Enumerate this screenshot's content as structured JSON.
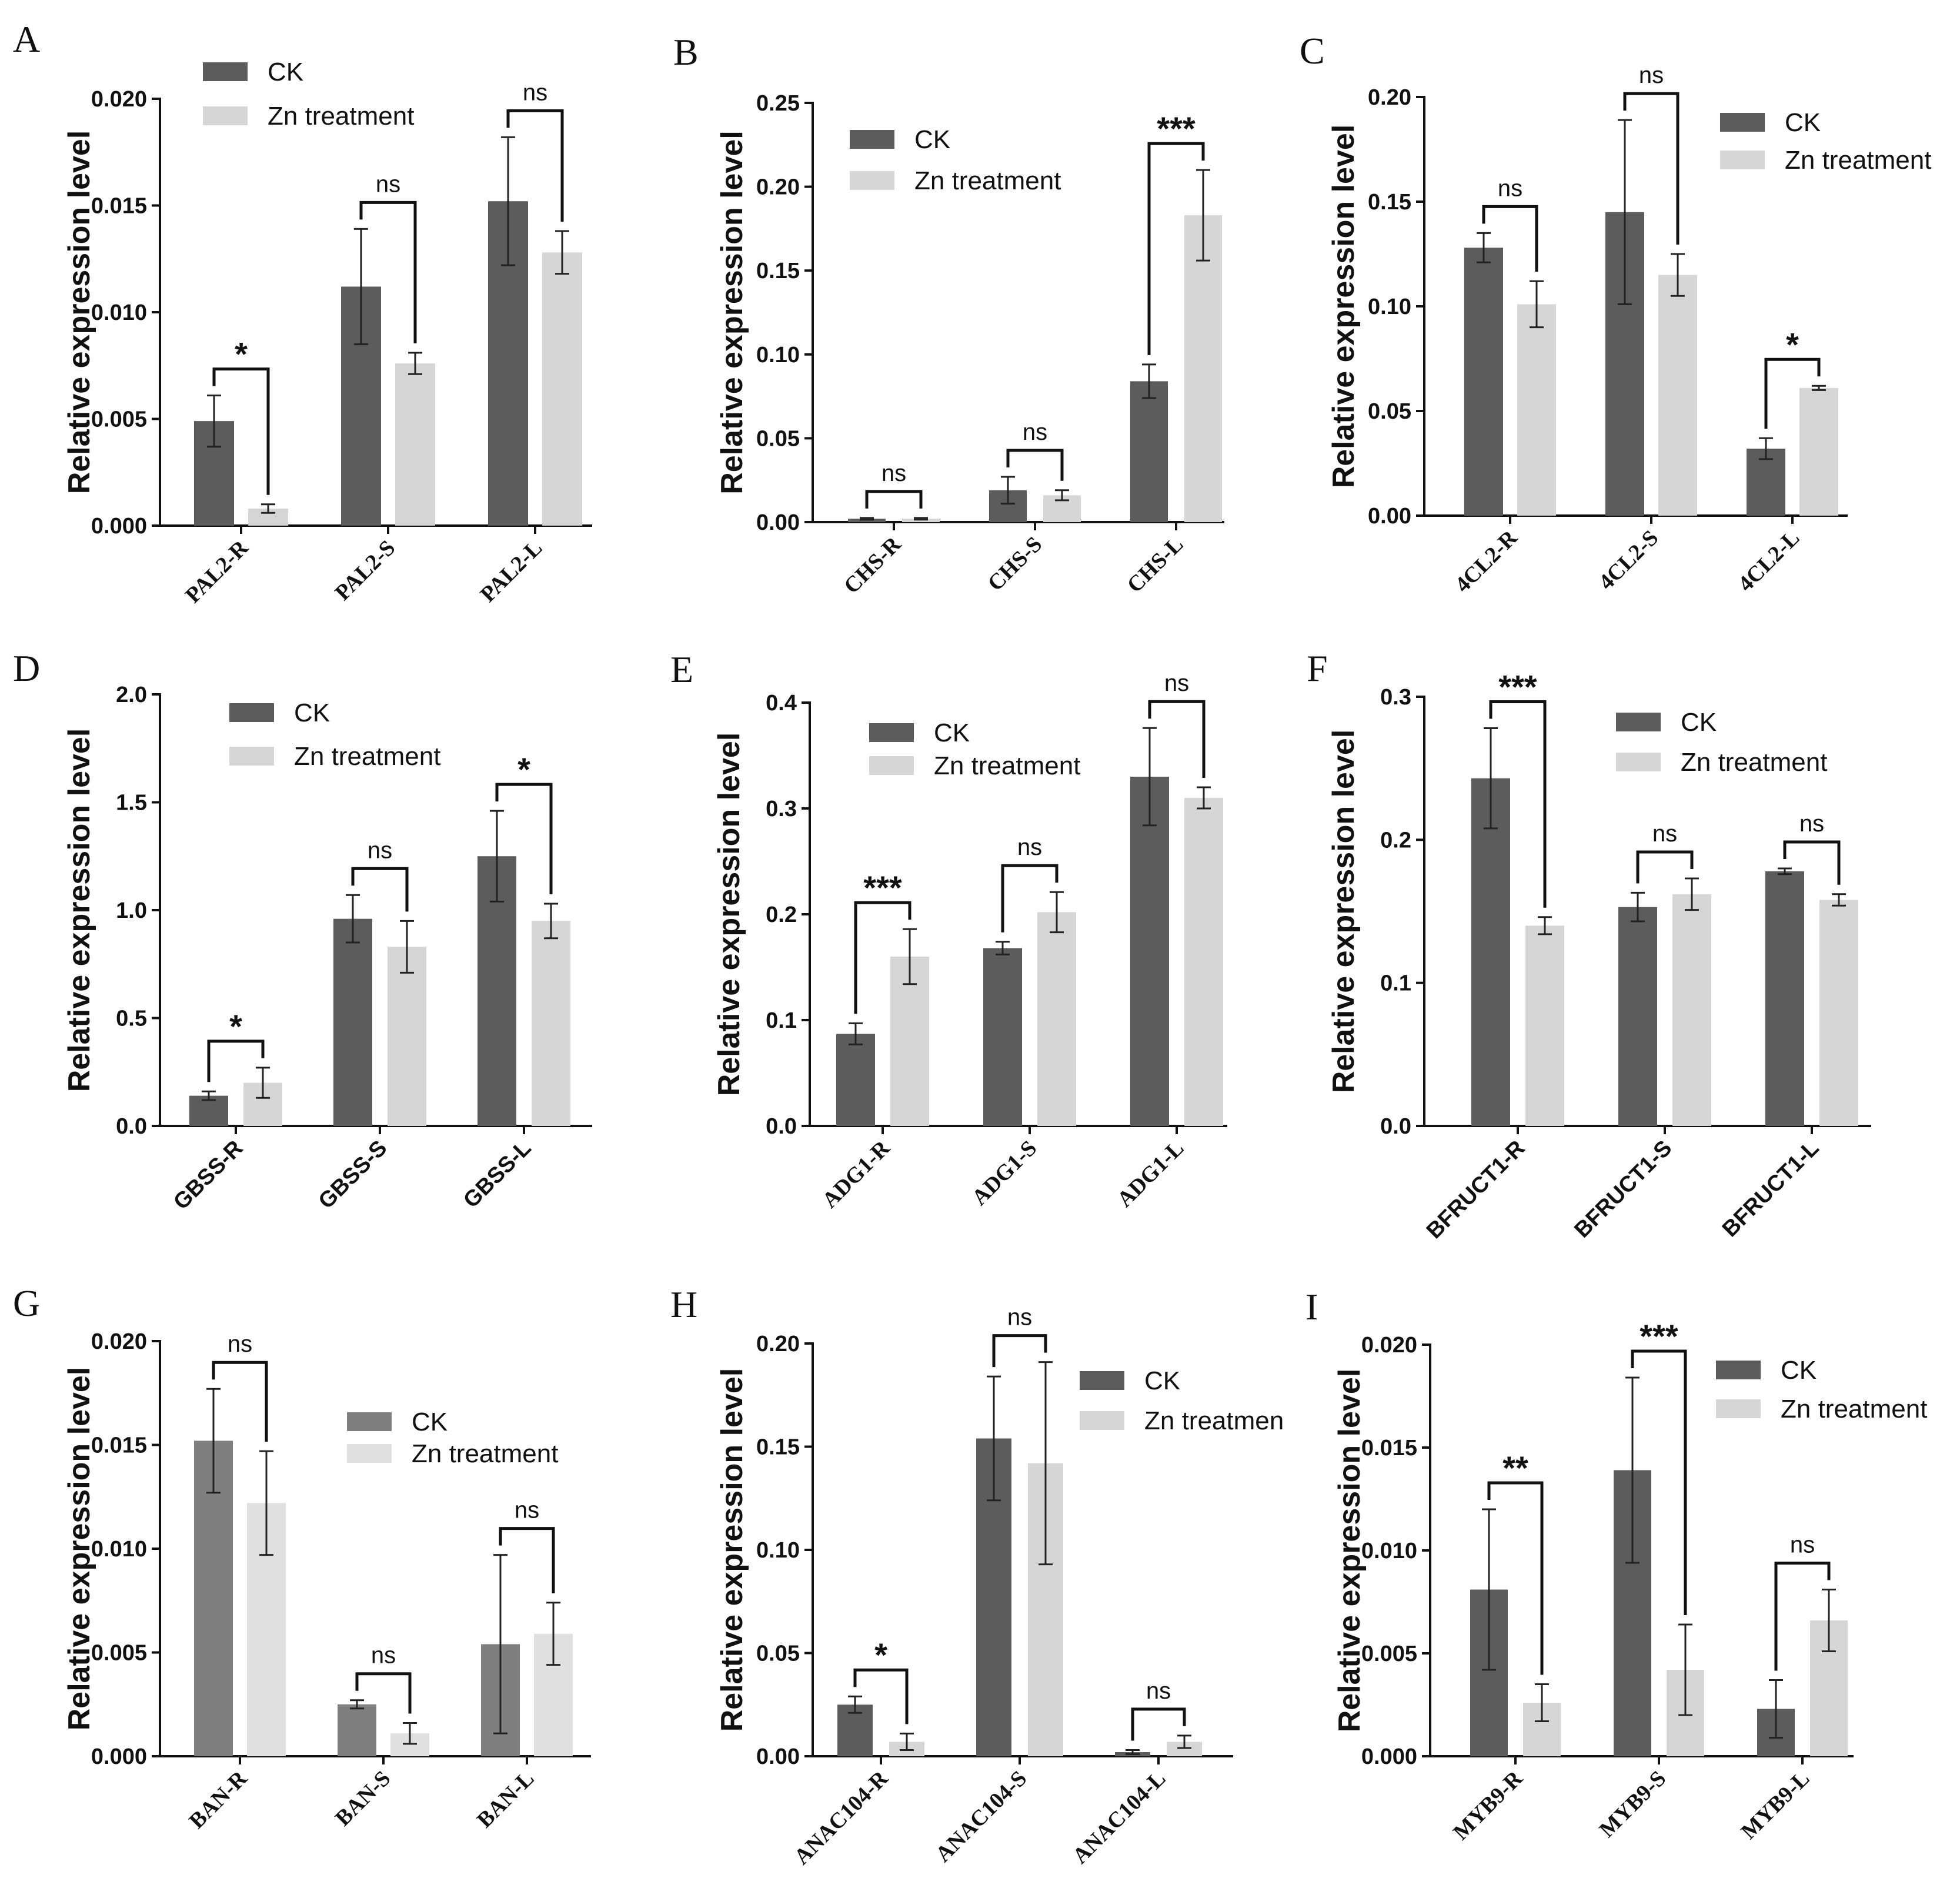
{
  "figure": {
    "colors": {
      "ck": "#5c5c5c",
      "zn": "#d6d6d6",
      "ck_light": "#7f7f7f",
      "zn_light": "#e0e0e0",
      "text": "#111111"
    }
  },
  "chart_data": [
    {
      "panel": "A",
      "type": "bar",
      "ylabel": "Relative expression level",
      "yticks": [
        "0.000",
        "0.005",
        "0.010",
        "0.015",
        "0.020"
      ],
      "ylim": [
        0,
        0.02
      ],
      "categories": [
        "PAL2-R",
        "PAL2-S",
        "PAL2-L"
      ],
      "legend": [
        "CK",
        "Zn treatment"
      ],
      "series": [
        {
          "name": "CK",
          "values": [
            0.0049,
            0.0112,
            0.0152
          ],
          "errors": [
            0.0012,
            0.0027,
            0.003
          ]
        },
        {
          "name": "Zn treatment",
          "values": [
            0.0008,
            0.0076,
            0.0128
          ],
          "errors": [
            0.0002,
            0.0005,
            0.001
          ]
        }
      ],
      "significance": [
        "*",
        "ns",
        "ns"
      ]
    },
    {
      "panel": "B",
      "type": "bar",
      "ylabel": "Relative expression level",
      "yticks": [
        "0.00",
        "0.05",
        "0.10",
        "0.15",
        "0.20",
        "0.25"
      ],
      "ylim": [
        0,
        0.25
      ],
      "categories": [
        "CHS-R",
        "CHS-S",
        "CHS-L"
      ],
      "legend": [
        "CK",
        "Zn treatment"
      ],
      "series": [
        {
          "name": "CK",
          "values": [
            0.002,
            0.019,
            0.084
          ],
          "errors": [
            0.0005,
            0.008,
            0.01
          ]
        },
        {
          "name": "Zn treatment",
          "values": [
            0.002,
            0.016,
            0.183
          ],
          "errors": [
            0.0005,
            0.003,
            0.027
          ]
        }
      ],
      "significance": [
        "ns",
        "ns",
        "***"
      ]
    },
    {
      "panel": "C",
      "type": "bar",
      "ylabel": "Relative expression level",
      "yticks": [
        "0.00",
        "0.05",
        "0.10",
        "0.15",
        "0.20"
      ],
      "ylim": [
        0,
        0.2
      ],
      "categories": [
        "4CL2-R",
        "4CL2-S",
        "4CL2-L"
      ],
      "legend": [
        "CK",
        "Zn treatment"
      ],
      "series": [
        {
          "name": "CK",
          "values": [
            0.128,
            0.145,
            0.032
          ],
          "errors": [
            0.007,
            0.044,
            0.005
          ]
        },
        {
          "name": "Zn treatment",
          "values": [
            0.101,
            0.115,
            0.061
          ],
          "errors": [
            0.011,
            0.01,
            0.001
          ]
        }
      ],
      "significance": [
        "ns",
        "ns",
        "*"
      ]
    },
    {
      "panel": "D",
      "type": "bar",
      "ylabel": "Relative expression level",
      "yticks": [
        "0.0",
        "0.5",
        "1.0",
        "1.5",
        "2.0"
      ],
      "ylim": [
        0,
        2.0
      ],
      "categories": [
        "GBSS-R",
        "GBSS-S",
        "GBSS-L"
      ],
      "legend": [
        "CK",
        "Zn treatment"
      ],
      "series": [
        {
          "name": "CK",
          "values": [
            0.14,
            0.96,
            1.25
          ],
          "errors": [
            0.02,
            0.11,
            0.21
          ]
        },
        {
          "name": "Zn treatment",
          "values": [
            0.2,
            0.83,
            0.95
          ],
          "errors": [
            0.07,
            0.12,
            0.08
          ]
        }
      ],
      "significance": [
        "*",
        "ns",
        "*"
      ]
    },
    {
      "panel": "E",
      "type": "bar",
      "ylabel": "Relative expression level",
      "yticks": [
        "0.0",
        "0.1",
        "0.2",
        "0.3",
        "0.4"
      ],
      "ylim": [
        0,
        0.4
      ],
      "categories": [
        "ADG1-R",
        "ADG1-S",
        "ADG1-L"
      ],
      "legend": [
        "CK",
        "Zn treatment"
      ],
      "series": [
        {
          "name": "CK",
          "values": [
            0.087,
            0.168,
            0.33
          ],
          "errors": [
            0.01,
            0.006,
            0.046
          ]
        },
        {
          "name": "Zn treatment",
          "values": [
            0.16,
            0.202,
            0.31
          ],
          "errors": [
            0.026,
            0.019,
            0.01
          ]
        }
      ],
      "significance": [
        "***",
        "ns",
        "ns"
      ]
    },
    {
      "panel": "F",
      "type": "bar",
      "ylabel": "Relative expression level",
      "yticks": [
        "0.0",
        "0.1",
        "0.2",
        "0.3"
      ],
      "ylim": [
        0,
        0.3
      ],
      "categories": [
        "BFRUCT1-R",
        "BFRUCT1-S",
        "BFRUCT1-L"
      ],
      "legend": [
        "CK",
        "Zn treatment"
      ],
      "series": [
        {
          "name": "CK",
          "values": [
            0.243,
            0.153,
            0.178
          ],
          "errors": [
            0.035,
            0.01,
            0.002
          ]
        },
        {
          "name": "Zn treatment",
          "values": [
            0.14,
            0.162,
            0.158
          ],
          "errors": [
            0.006,
            0.011,
            0.004
          ]
        }
      ],
      "significance": [
        "***",
        "ns",
        "ns"
      ]
    },
    {
      "panel": "G",
      "type": "bar",
      "ylabel": "Relative expression level",
      "yticks": [
        "0.000",
        "0.005",
        "0.010",
        "0.015",
        "0.020"
      ],
      "ylim": [
        0,
        0.02
      ],
      "categories": [
        "BAN-R",
        "BAN-S",
        "BAN-L"
      ],
      "legend": [
        "CK",
        "Zn treatment"
      ],
      "series": [
        {
          "name": "CK",
          "values": [
            0.0152,
            0.0025,
            0.0054
          ],
          "errors": [
            0.0025,
            0.0002,
            0.0043
          ]
        },
        {
          "name": "Zn treatment",
          "values": [
            0.0122,
            0.0011,
            0.0059
          ],
          "errors": [
            0.0025,
            0.0005,
            0.0015
          ]
        }
      ],
      "significance": [
        "ns",
        "ns",
        "ns"
      ]
    },
    {
      "panel": "H",
      "type": "bar",
      "ylabel": "Relative expression level",
      "yticks": [
        "0.00",
        "0.05",
        "0.10",
        "0.15",
        "0.20"
      ],
      "ylim": [
        0,
        0.2
      ],
      "categories": [
        "ANAC104-R",
        "ANAC104-S",
        "ANAC104-L"
      ],
      "legend": [
        "CK",
        "Zn treatmen"
      ],
      "series": [
        {
          "name": "CK",
          "values": [
            0.025,
            0.154,
            0.002
          ],
          "errors": [
            0.004,
            0.03,
            0.001
          ]
        },
        {
          "name": "Zn treatment",
          "values": [
            0.007,
            0.142,
            0.007
          ],
          "errors": [
            0.004,
            0.049,
            0.003
          ]
        }
      ],
      "significance": [
        "*",
        "ns",
        "ns"
      ]
    },
    {
      "panel": "I",
      "type": "bar",
      "ylabel": "Relative expression level",
      "yticks": [
        "0.000",
        "0.005",
        "0.010",
        "0.015",
        "0.020"
      ],
      "ylim": [
        0,
        0.02
      ],
      "categories": [
        "MYB9-R",
        "MYB9-S",
        "MYB9-L"
      ],
      "legend": [
        "CK",
        "Zn treatment"
      ],
      "series": [
        {
          "name": "CK",
          "values": [
            0.0081,
            0.0139,
            0.0023
          ],
          "errors": [
            0.0039,
            0.0045,
            0.0014
          ]
        },
        {
          "name": "Zn treatment",
          "values": [
            0.0026,
            0.0042,
            0.0066
          ],
          "errors": [
            0.0009,
            0.0022,
            0.0015
          ]
        }
      ],
      "significance": [
        "**",
        "***",
        "ns"
      ]
    }
  ]
}
